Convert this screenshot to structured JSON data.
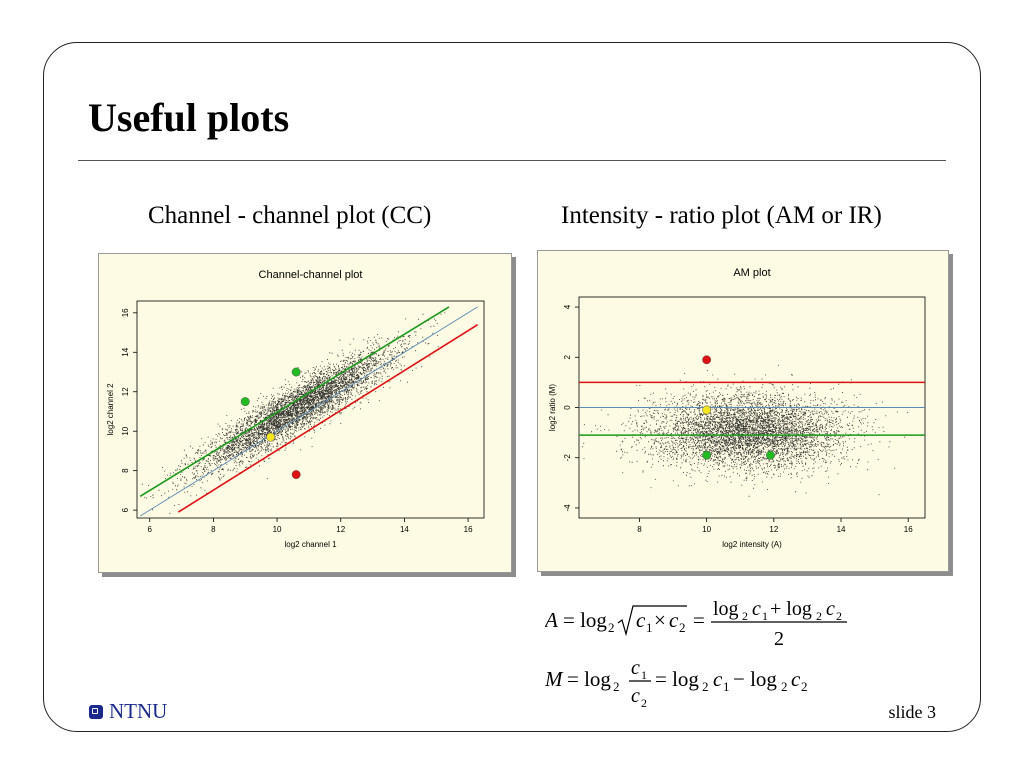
{
  "slide": {
    "title": "Useful plots",
    "left_heading": "Channel - channel plot (CC)",
    "right_heading": "Intensity - ratio plot (AM or IR)",
    "logo_text": "NTNU",
    "slide_number": "slide 3"
  },
  "formulas": {
    "A_lhs": "A = log",
    "A_mid": "c",
    "A_num": "log",
    "A_den": "2",
    "M_lhs": "M = log",
    "M_rhs": "= log",
    "M_frac_num": "c",
    "M_frac_den": "c"
  },
  "chart_data": [
    {
      "type": "scatter",
      "title": "Channel-channel plot",
      "xlabel": "log2 channel 1",
      "ylabel": "log2 channel 2",
      "xlim": [
        5.6,
        16.5
      ],
      "ylim": [
        5.6,
        16.6
      ],
      "x_ticks": [
        "6",
        "8",
        "10",
        "12",
        "14",
        "16"
      ],
      "y_ticks": [
        "6",
        "8",
        "10",
        "12",
        "14",
        "16"
      ],
      "cloud": {
        "color": "#000000",
        "center": [
          10.8,
          11.4
        ],
        "note": "dense point cloud along diagonal"
      },
      "lines": [
        {
          "name": "",
          "color": "#1a9a1a",
          "from": [
            5.7,
            6.7
          ],
          "to": [
            15.4,
            16.3
          ]
        },
        {
          "name": "",
          "color": "#5a8bb5",
          "from": [
            5.7,
            5.7
          ],
          "to": [
            16.3,
            16.3
          ]
        },
        {
          "name": "",
          "color": "#dd1111",
          "from": [
            6.9,
            5.9
          ],
          "to": [
            16.3,
            15.4
          ]
        }
      ],
      "highlighted_points": [
        {
          "x": 9.0,
          "y": 11.5,
          "color": "#22bb22"
        },
        {
          "x": 10.6,
          "y": 13.0,
          "color": "#22bb22"
        },
        {
          "x": 9.8,
          "y": 9.7,
          "color": "#f4e61e"
        },
        {
          "x": 10.6,
          "y": 7.8,
          "color": "#dd1111"
        }
      ],
      "grid": false
    },
    {
      "type": "scatter",
      "title": "AM plot",
      "xlabel": "log2 intensity (A)",
      "ylabel": "log2 ratio (M)",
      "xlim": [
        6.2,
        16.5
      ],
      "ylim": [
        -4.4,
        4.4
      ],
      "x_ticks": [
        "8",
        "10",
        "12",
        "14",
        "16"
      ],
      "y_ticks": [
        "-4",
        "-2",
        "0",
        "2",
        "4"
      ],
      "cloud": {
        "color": "#000000",
        "center": [
          11.0,
          -1.0
        ],
        "note": "dense point cloud around M=0"
      },
      "lines": [
        {
          "name": "",
          "color": "#dd1111",
          "y": 1.0
        },
        {
          "name": "",
          "color": "#5a8bb5",
          "y": 0.0
        },
        {
          "name": "",
          "color": "#1a9a1a",
          "y": -1.1
        }
      ],
      "highlighted_points": [
        {
          "x": 10.0,
          "y": 1.9,
          "color": "#dd1111"
        },
        {
          "x": 10.0,
          "y": -0.1,
          "color": "#f4e61e"
        },
        {
          "x": 10.0,
          "y": -1.9,
          "color": "#22bb22"
        },
        {
          "x": 11.9,
          "y": -1.9,
          "color": "#22bb22"
        }
      ],
      "grid": false
    }
  ]
}
